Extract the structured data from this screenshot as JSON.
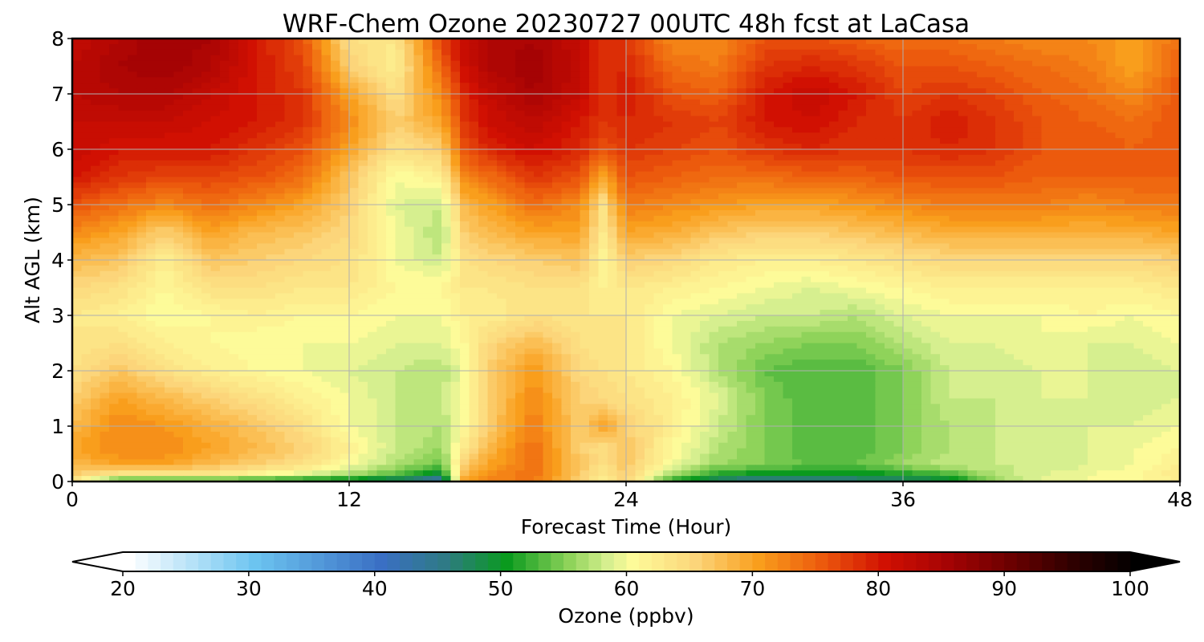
{
  "chart_data": {
    "type": "heatmap",
    "title": "WRF-Chem Ozone  20230727 00UTC 48h fcst at LaCasa",
    "xlabel": "Forecast Time (Hour)",
    "ylabel": "Alt AGL (km)",
    "xlim": [
      0,
      48
    ],
    "ylim": [
      0,
      8
    ],
    "xticks": [
      "0",
      "12",
      "24",
      "36",
      "48"
    ],
    "yticks": [
      "0",
      "1",
      "2",
      "3",
      "4",
      "5",
      "6",
      "7",
      "8"
    ],
    "grid": true,
    "colorbar": {
      "label": "Ozone  (ppbv)",
      "range": [
        20,
        100
      ],
      "ticks": [
        "20",
        "30",
        "40",
        "50",
        "60",
        "70",
        "80",
        "90",
        "100"
      ],
      "extend": "both",
      "stops": [
        {
          "v": 20,
          "c": "#ffffff"
        },
        {
          "v": 30,
          "c": "#6cc4f0"
        },
        {
          "v": 40,
          "c": "#3a6fc4"
        },
        {
          "v": 45,
          "c": "#2f7a86"
        },
        {
          "v": 50,
          "c": "#0a9a1e"
        },
        {
          "v": 55,
          "c": "#8fd35a"
        },
        {
          "v": 58,
          "c": "#d6ef8f"
        },
        {
          "v": 60,
          "c": "#fdfb99"
        },
        {
          "v": 65,
          "c": "#fcd57a"
        },
        {
          "v": 70,
          "c": "#f99e1c"
        },
        {
          "v": 75,
          "c": "#ec5a0d"
        },
        {
          "v": 80,
          "c": "#d11002"
        },
        {
          "v": 85,
          "c": "#a50304"
        },
        {
          "v": 90,
          "c": "#6b0000"
        },
        {
          "v": 95,
          "c": "#2e0000"
        },
        {
          "v": 100,
          "c": "#000000"
        }
      ]
    },
    "x_hours": [
      0,
      2,
      4,
      6,
      8,
      10,
      12,
      14,
      16,
      17,
      18,
      20,
      22,
      23,
      24,
      26,
      28,
      30,
      32,
      34,
      36,
      38,
      40,
      42,
      44,
      46,
      48
    ],
    "z_km": [
      0,
      0.1,
      0.3,
      0.6,
      1,
      1.5,
      2,
      2.5,
      3,
      3.5,
      4,
      4.5,
      5,
      5.5,
      6,
      6.5,
      7,
      7.5,
      8
    ],
    "ozone_ppbv": [
      [
        62,
        50,
        49,
        50,
        49,
        48,
        47,
        44,
        40,
        70,
        72,
        73,
        66,
        62,
        66,
        50,
        45,
        44,
        44,
        45,
        46,
        47,
        56,
        59,
        60,
        60,
        62
      ],
      [
        66,
        62,
        61,
        62,
        60,
        58,
        56,
        53,
        48,
        68,
        72,
        74,
        66,
        63,
        66,
        56,
        50,
        49,
        49,
        49,
        50,
        52,
        57,
        59,
        60,
        61,
        63
      ],
      [
        68,
        70,
        70,
        68,
        66,
        64,
        60,
        57,
        54,
        66,
        70,
        74,
        67,
        64,
        67,
        60,
        56,
        55,
        54,
        54,
        56,
        58,
        58,
        58,
        59,
        60,
        62
      ],
      [
        70,
        72,
        72,
        70,
        68,
        66,
        62,
        58,
        56,
        63,
        68,
        74,
        66,
        64,
        67,
        61,
        57,
        55,
        53,
        53,
        55,
        57,
        58,
        58,
        59,
        60,
        61
      ],
      [
        68,
        72,
        71,
        69,
        67,
        64,
        60,
        58,
        57,
        61,
        66,
        73,
        66,
        70,
        66,
        62,
        58,
        55,
        53,
        53,
        55,
        57,
        58,
        58,
        59,
        59,
        60
      ],
      [
        66,
        70,
        68,
        66,
        64,
        62,
        60,
        58,
        58,
        60,
        66,
        72,
        66,
        65,
        64,
        62,
        59,
        55,
        53,
        53,
        55,
        58,
        58,
        59,
        59,
        58,
        59
      ],
      [
        64,
        67,
        64,
        62,
        61,
        60,
        59,
        58,
        57,
        60,
        66,
        71,
        65,
        64,
        63,
        61,
        57,
        54,
        53,
        53,
        55,
        58,
        58,
        59,
        59,
        58,
        59
      ],
      [
        63,
        64,
        62,
        61,
        60,
        60,
        60,
        59,
        59,
        61,
        65,
        68,
        64,
        63,
        63,
        60,
        57,
        56,
        55,
        55,
        57,
        59,
        59,
        60,
        59,
        59,
        60
      ],
      [
        63,
        62,
        60,
        61,
        62,
        61,
        61,
        60,
        60,
        62,
        62,
        64,
        63,
        63,
        63,
        60,
        59,
        58,
        58,
        57,
        59,
        60,
        60,
        60,
        61,
        60,
        61
      ],
      [
        65,
        64,
        61,
        64,
        64,
        63,
        63,
        61,
        61,
        63,
        63,
        64,
        64,
        62,
        63,
        62,
        61,
        60,
        59,
        60,
        61,
        62,
        62,
        62,
        62,
        62,
        63
      ],
      [
        68,
        67,
        62,
        67,
        66,
        65,
        64,
        60,
        58,
        64,
        65,
        66,
        67,
        61,
        66,
        65,
        63,
        62,
        62,
        63,
        64,
        65,
        65,
        65,
        65,
        65,
        66
      ],
      [
        72,
        70,
        66,
        70,
        68,
        67,
        65,
        60,
        57,
        66,
        68,
        70,
        70,
        63,
        70,
        69,
        67,
        66,
        66,
        67,
        68,
        69,
        69,
        69,
        69,
        69,
        70
      ],
      [
        76,
        74,
        72,
        74,
        72,
        70,
        66,
        59,
        58,
        68,
        70,
        74,
        72,
        64,
        73,
        72,
        71,
        70,
        70,
        71,
        72,
        73,
        73,
        73,
        72,
        73,
        73
      ],
      [
        80,
        78,
        77,
        77,
        76,
        74,
        67,
        60,
        62,
        72,
        74,
        78,
        76,
        70,
        76,
        75,
        74,
        74,
        75,
        75,
        76,
        76,
        76,
        75,
        75,
        75,
        75
      ],
      [
        82,
        80,
        80,
        80,
        78,
        76,
        70,
        64,
        66,
        76,
        79,
        81,
        79,
        76,
        78,
        77,
        76,
        78,
        79,
        78,
        78,
        79,
        78,
        76,
        76,
        75,
        76
      ],
      [
        82,
        82,
        82,
        81,
        80,
        78,
        72,
        66,
        70,
        78,
        81,
        83,
        80,
        78,
        79,
        78,
        77,
        80,
        81,
        79,
        78,
        80,
        78,
        76,
        75,
        74,
        76
      ],
      [
        83,
        84,
        84,
        82,
        80,
        78,
        70,
        64,
        72,
        79,
        82,
        85,
        82,
        78,
        80,
        76,
        75,
        80,
        82,
        80,
        77,
        78,
        77,
        75,
        74,
        72,
        76
      ],
      [
        83,
        85,
        86,
        84,
        80,
        77,
        66,
        62,
        75,
        81,
        84,
        86,
        82,
        78,
        79,
        74,
        73,
        78,
        79,
        78,
        76,
        76,
        75,
        74,
        73,
        70,
        75
      ],
      [
        82,
        84,
        86,
        85,
        80,
        76,
        64,
        63,
        77,
        82,
        84,
        85,
        82,
        78,
        78,
        72,
        72,
        76,
        76,
        75,
        74,
        74,
        73,
        72,
        72,
        70,
        74
      ]
    ]
  }
}
